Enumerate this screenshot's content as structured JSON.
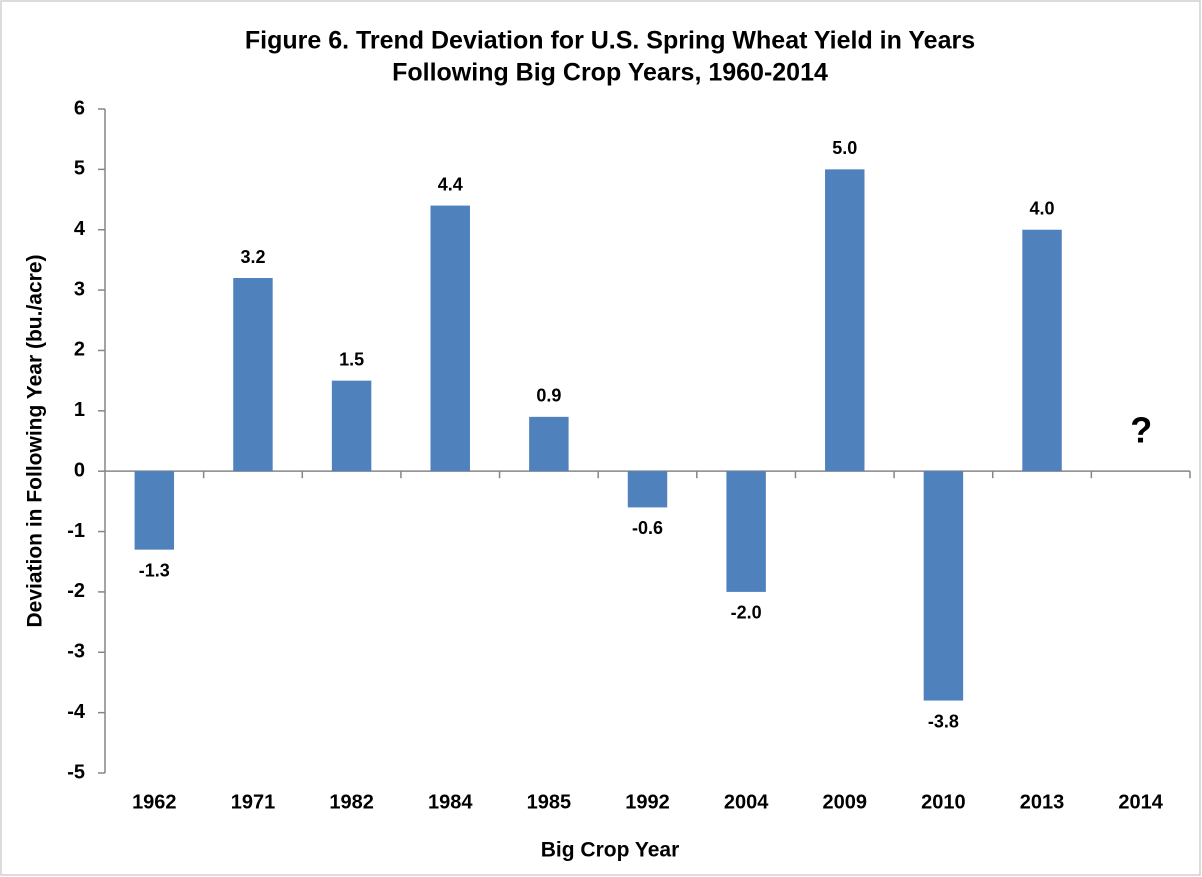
{
  "chart_data": {
    "type": "bar",
    "title": [
      "Figure 6. Trend Deviation for U.S. Spring Wheat Yield in Years",
      "Following Big Crop Years, 1960-2014"
    ],
    "x_label": "Big Crop Year",
    "y_label": "Deviation in Following Year (bu./acre)",
    "categories": [
      "1962",
      "1971",
      "1982",
      "1984",
      "1985",
      "1992",
      "2004",
      "2009",
      "2010",
      "2013",
      "2014"
    ],
    "values": [
      -1.3,
      3.2,
      1.5,
      4.4,
      0.9,
      -0.6,
      -2.0,
      5.0,
      -3.8,
      4.0,
      null
    ],
    "value_labels": [
      "-1.3",
      "3.2",
      "1.5",
      "4.4",
      "0.9",
      "-0.6",
      "-2.0",
      "5.0",
      "-3.8",
      "4.0",
      "?"
    ],
    "color": "#4f81bd",
    "ylim": [
      -5,
      6
    ],
    "yticks": [
      -5,
      -4,
      -3,
      -2,
      -1,
      0,
      1,
      2,
      3,
      4,
      5,
      6
    ],
    "grid": false
  }
}
